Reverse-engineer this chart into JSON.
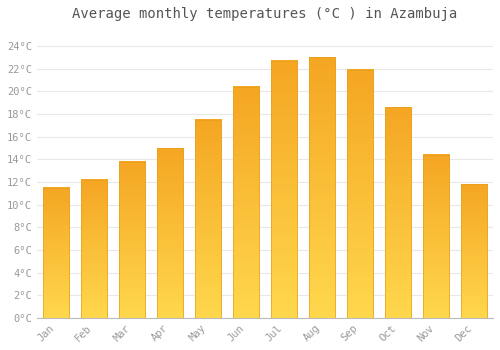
{
  "title": "Average monthly temperatures (°C ) in Azambuja",
  "months": [
    "Jan",
    "Feb",
    "Mar",
    "Apr",
    "May",
    "Jun",
    "Jul",
    "Aug",
    "Sep",
    "Oct",
    "Nov",
    "Dec"
  ],
  "values": [
    11.5,
    12.2,
    13.8,
    15.0,
    17.5,
    20.4,
    22.7,
    23.0,
    21.9,
    18.6,
    14.4,
    11.8
  ],
  "bar_color_top": "#F5A623",
  "bar_color_bottom": "#FFD84D",
  "bar_edge_color": "#E8A020",
  "ylim": [
    0,
    25.5
  ],
  "yticks": [
    0,
    2,
    4,
    6,
    8,
    10,
    12,
    14,
    16,
    18,
    20,
    22,
    24
  ],
  "ytick_labels": [
    "0°C",
    "2°C",
    "4°C",
    "6°C",
    "8°C",
    "10°C",
    "12°C",
    "14°C",
    "16°C",
    "18°C",
    "20°C",
    "22°C",
    "24°C"
  ],
  "background_color": "#FFFFFF",
  "grid_color": "#E8E8E8",
  "title_fontsize": 10,
  "tick_fontsize": 7.5,
  "bar_width": 0.7,
  "font_family": "monospace"
}
